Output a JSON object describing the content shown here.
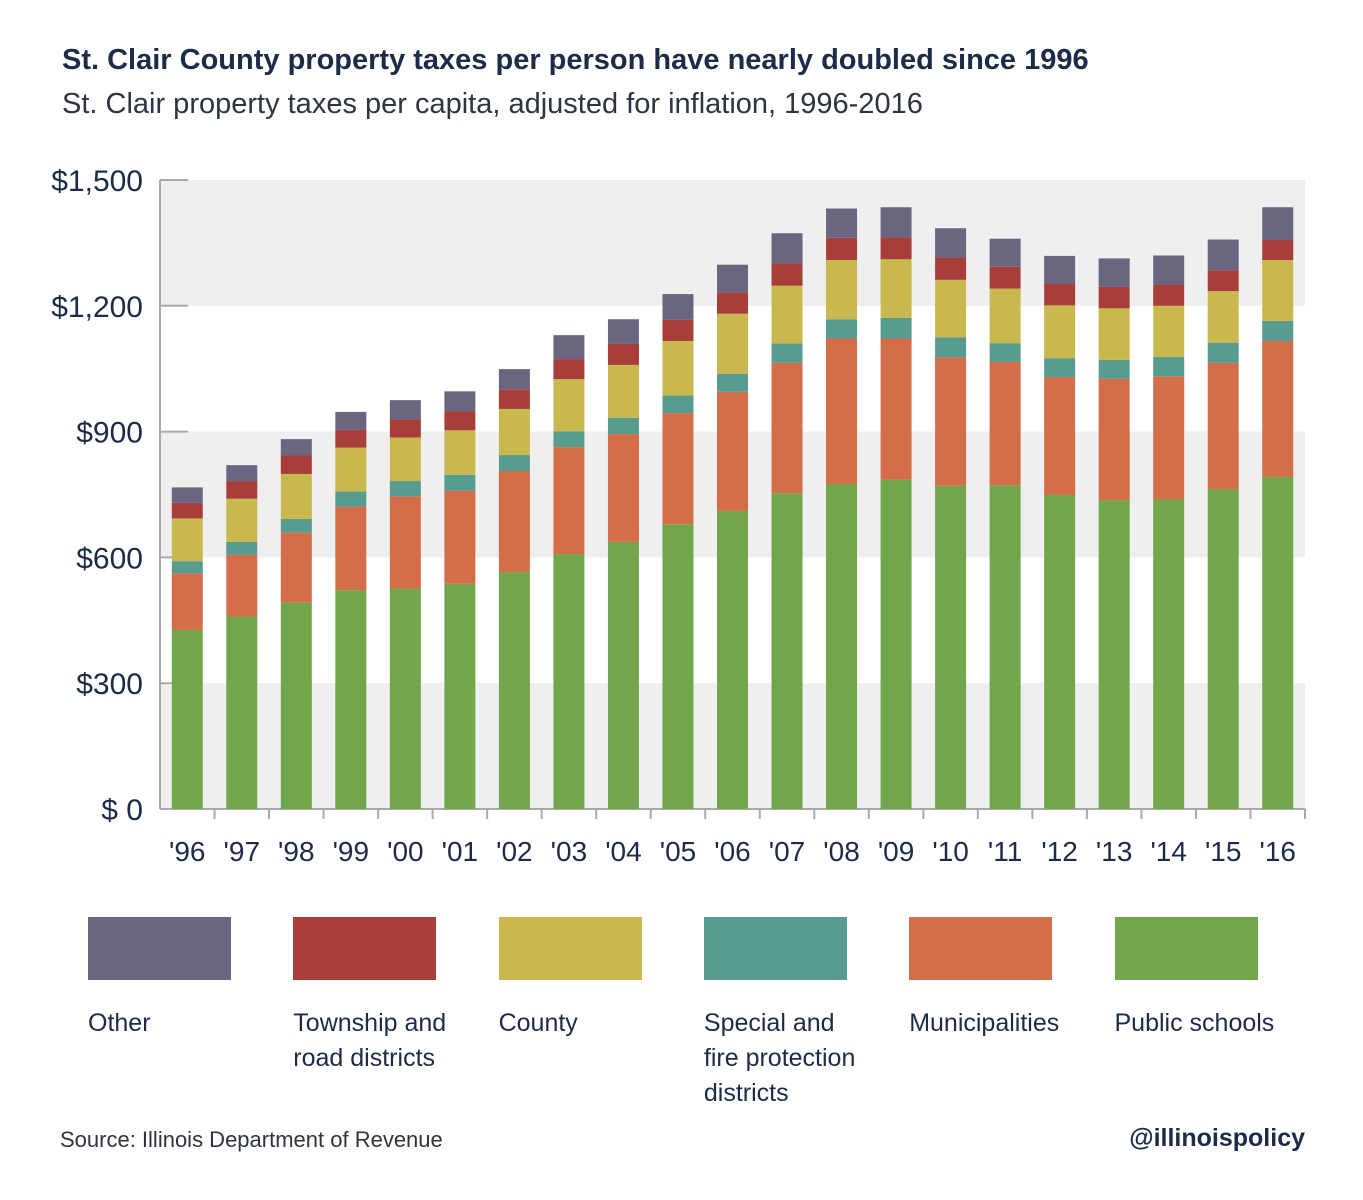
{
  "chart_data": {
    "type": "bar",
    "stacked": true,
    "title": "St. Clair County property taxes per person have nearly doubled since 1996",
    "subtitle": "St. Clair property taxes per capita, adjusted for inflation, 1996-2016",
    "ylim": [
      0,
      1500
    ],
    "yticks": [
      0,
      300,
      600,
      900,
      1200,
      1500
    ],
    "ytick_labels": [
      "$ 0",
      "$300",
      "$600",
      "$900",
      "$1,200",
      "$1,500"
    ],
    "categories": [
      "'96",
      "'97",
      "'98",
      "'99",
      "'00",
      "'01",
      "'02",
      "'03",
      "'04",
      "'05",
      "'06",
      "'07",
      "'08",
      "'09",
      "'10",
      "'11",
      "'12",
      "'13",
      "'14",
      "'15",
      "'16"
    ],
    "legend_position": "bottom",
    "grid": "alternating horizontal bands",
    "series": [
      {
        "name": "Public schools",
        "color": "#72a64c",
        "values": [
          427,
          459,
          492,
          522,
          526,
          537,
          565,
          608,
          637,
          679,
          711,
          753,
          775,
          786,
          771,
          772,
          749,
          736,
          738,
          763,
          792
        ]
      },
      {
        "name": "Municipalities",
        "color": "#d36d4a",
        "values": [
          135,
          147,
          167,
          199,
          220,
          222,
          241,
          255,
          257,
          265,
          284,
          311,
          347,
          336,
          306,
          294,
          281,
          290,
          294,
          301,
          324
        ]
      },
      {
        "name": "Special and fire protection districts",
        "color": "#589b8f",
        "values": [
          29,
          31,
          33,
          36,
          36,
          38,
          38,
          38,
          39,
          42,
          43,
          46,
          46,
          49,
          48,
          45,
          45,
          45,
          46,
          48,
          48
        ]
      },
      {
        "name": "County",
        "color": "#c9b84e",
        "values": [
          102,
          103,
          107,
          105,
          104,
          106,
          110,
          124,
          126,
          130,
          143,
          138,
          141,
          140,
          137,
          130,
          126,
          123,
          122,
          123,
          145
        ]
      },
      {
        "name": "Township and road districts",
        "color": "#a83e39",
        "values": [
          37,
          42,
          44,
          42,
          43,
          45,
          47,
          48,
          50,
          51,
          51,
          53,
          53,
          52,
          53,
          52,
          51,
          51,
          51,
          50,
          49
        ]
      },
      {
        "name": "Other",
        "color": "#6b6680",
        "values": [
          37,
          38,
          39,
          43,
          46,
          48,
          48,
          57,
          59,
          61,
          66,
          72,
          70,
          72,
          70,
          67,
          67,
          68,
          69,
          73,
          77
        ]
      }
    ]
  },
  "legend": [
    {
      "label": "Other",
      "color": "#6b6680"
    },
    {
      "label": "Township and road districts",
      "color": "#a83e39"
    },
    {
      "label": "County",
      "color": "#c9b84e"
    },
    {
      "label": "Special and fire protection districts",
      "color": "#589b8f"
    },
    {
      "label": "Municipalities",
      "color": "#d36d4a"
    },
    {
      "label": "Public schools",
      "color": "#72a64c"
    }
  ],
  "footer": {
    "source": "Source: Illinois Department of Revenue",
    "handle": "@illinoispolicy"
  }
}
